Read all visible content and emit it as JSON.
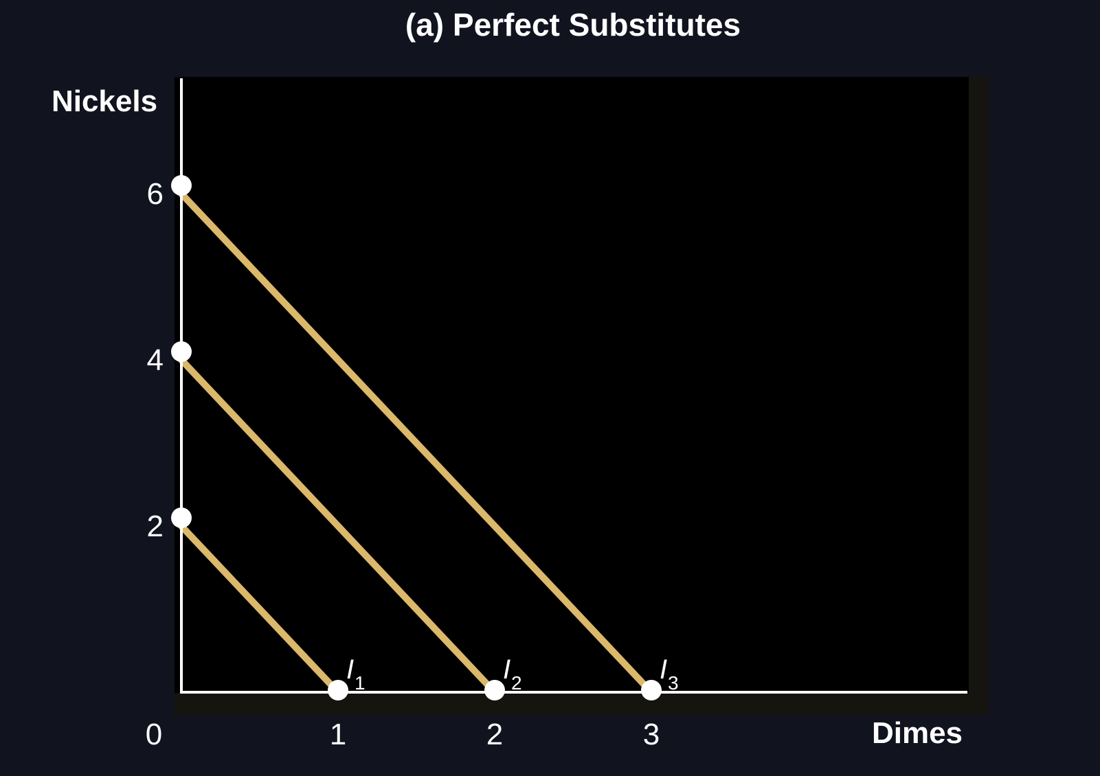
{
  "chart_data": {
    "type": "line",
    "title": "(a) Perfect Substitutes",
    "xlabel": "Dimes",
    "ylabel": "Nickels",
    "origin_label": "0",
    "xlim": [
      0,
      5
    ],
    "ylim": [
      0,
      7.4
    ],
    "x_ticks": [
      1,
      2,
      3
    ],
    "y_ticks": [
      2,
      4,
      6
    ],
    "grid": false,
    "colors": {
      "page_background": "#11131f",
      "plot_background": "#000000",
      "plot_frame": "#16140e",
      "axis": "#ffffff",
      "curve": "#dbb86a",
      "marker": "#ffffff",
      "text": "#ffffff"
    },
    "series": [
      {
        "label": "I",
        "label_sub": "1",
        "x": [
          0,
          1
        ],
        "y": [
          2,
          0
        ]
      },
      {
        "label": "I",
        "label_sub": "2",
        "x": [
          0,
          2
        ],
        "y": [
          4,
          0
        ]
      },
      {
        "label": "I",
        "label_sub": "3",
        "x": [
          0,
          3
        ],
        "y": [
          6,
          0
        ]
      }
    ]
  }
}
